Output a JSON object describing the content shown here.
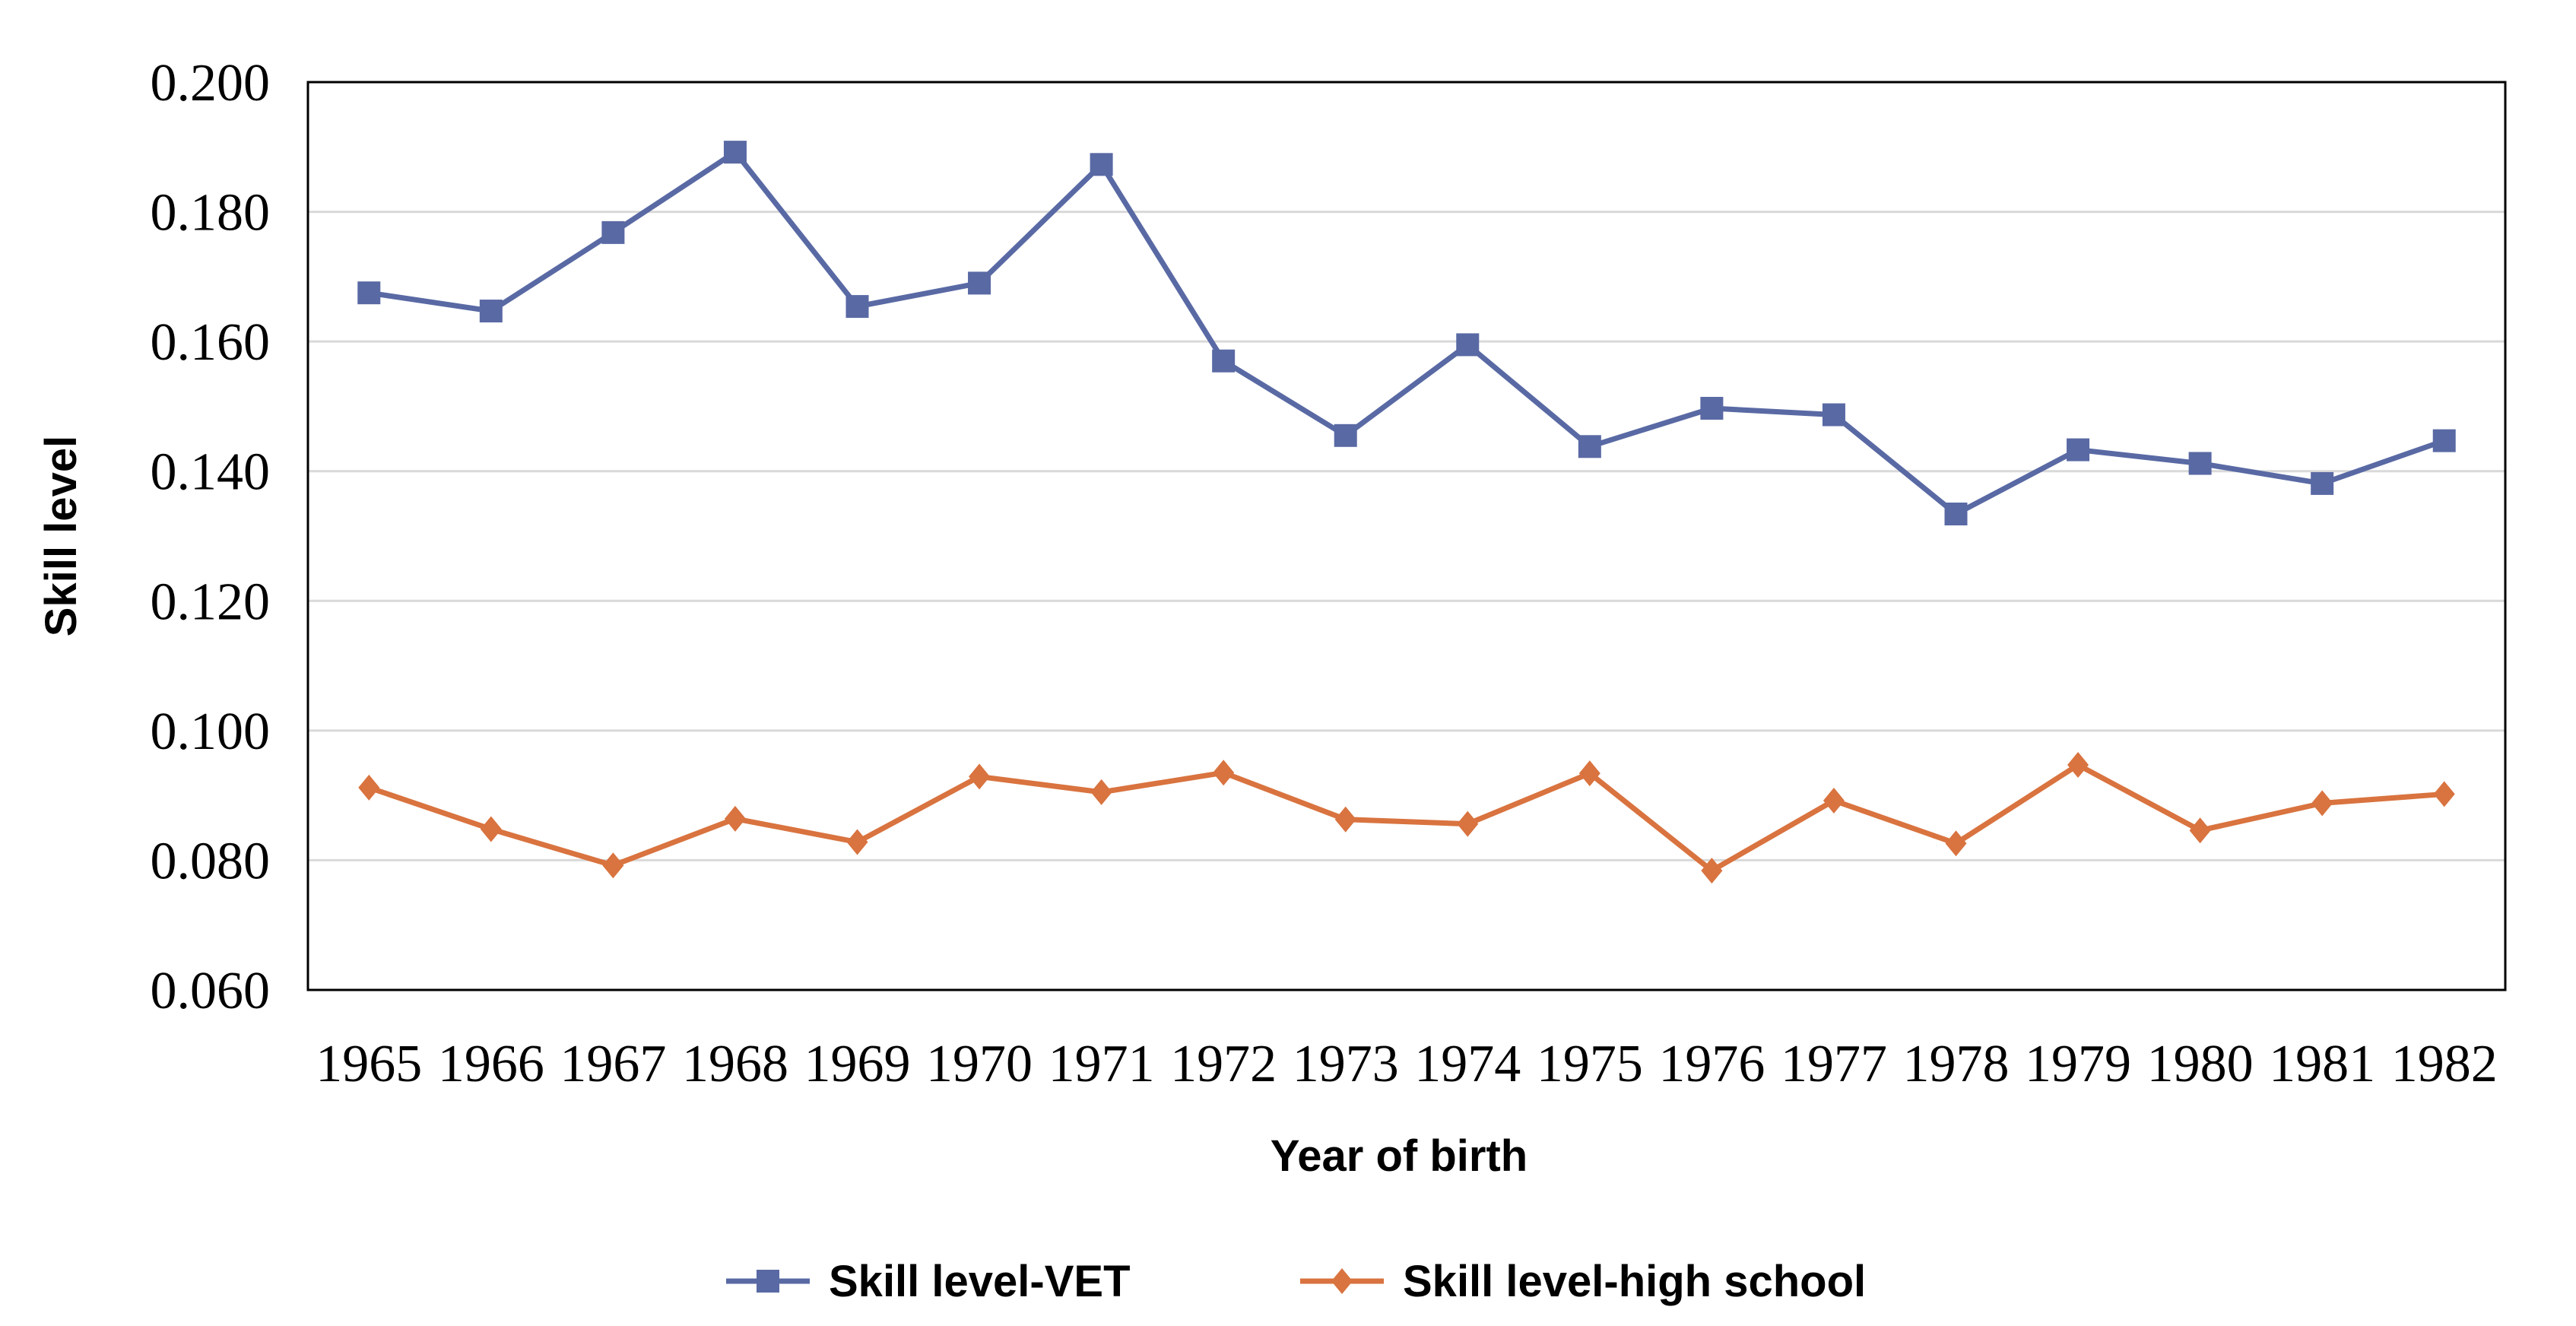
{
  "chart_data": {
    "type": "line",
    "title": "",
    "xlabel": "Year of birth",
    "ylabel": "Skill level",
    "categories": [
      "1965",
      "1966",
      "1967",
      "1968",
      "1969",
      "1970",
      "1971",
      "1972",
      "1973",
      "1974",
      "1975",
      "1976",
      "1977",
      "1978",
      "1979",
      "1980",
      "1981",
      "1982"
    ],
    "ylim": [
      0.06,
      0.2
    ],
    "yticks": [
      "0.060",
      "0.080",
      "0.100",
      "0.120",
      "0.140",
      "0.160",
      "0.180",
      "0.200"
    ],
    "grid": true,
    "legend_position": "bottom",
    "series": [
      {
        "name": "Skill level-VET",
        "color": "#5969A4",
        "marker": "square",
        "values": [
          0.1675,
          0.1647,
          0.1768,
          0.1892,
          0.1654,
          0.169,
          0.1873,
          0.157,
          0.1455,
          0.1595,
          0.1438,
          0.1497,
          0.1487,
          0.1334,
          0.1433,
          0.1412,
          0.1381,
          0.1447
        ]
      },
      {
        "name": "Skill level-high school",
        "color": "#D9733F",
        "marker": "diamond",
        "values": [
          0.0912,
          0.0848,
          0.0792,
          0.0864,
          0.0828,
          0.0929,
          0.0905,
          0.0935,
          0.0863,
          0.0856,
          0.0934,
          0.0784,
          0.0892,
          0.0826,
          0.0947,
          0.0846,
          0.0888,
          0.0902
        ]
      }
    ]
  }
}
